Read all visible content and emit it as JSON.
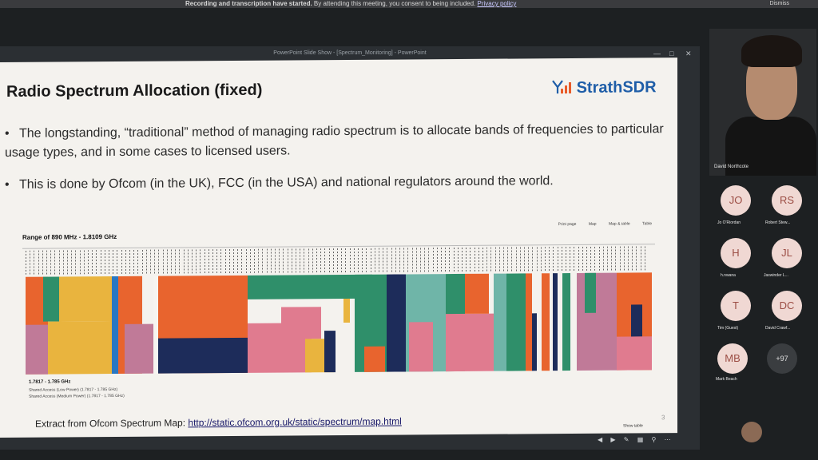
{
  "banner": {
    "message_bold": "Recording and transcription have started.",
    "message": " By attending this meeting, you consent to being included.",
    "privacy_link": "Privacy policy",
    "dismiss_label": "Dismiss"
  },
  "ppt": {
    "window_title": "PowerPoint Slide Show - [Spectrum_Monitoring] - PowerPoint",
    "slide": {
      "title": "Radio Spectrum Allocation (fixed)",
      "logo_text": "StrathSDR",
      "bullets": [
        "The longstanding, “traditional” method of managing radio spectrum is to allocate bands of frequencies to particular usage types, and in some cases to licensed users.",
        "This is done by Ofcom (in the UK), FCC (in the USA) and national regulators around the world."
      ],
      "map": {
        "range_label": "Range of 890 MHz - 1.8109 GHz",
        "links": [
          "Print page",
          "Map",
          "Map & table",
          "Table"
        ],
        "show_table": "Show table",
        "legend_title": "1.7817 - 1.785 GHz",
        "legend_lines": [
          "Shared Access (Low Power) (1.7817 - 1.785 GHz)",
          "Shared Access (Medium Power) (1.7817 - 1.785 GHz)"
        ]
      },
      "footnote_prefix": "Extract from Ofcom Spectrum Map: ",
      "footnote_link": "http://static.ofcom.org.uk/static/spectrum/map.html",
      "slide_number": "3"
    }
  },
  "participants": {
    "video_name": "David Northcote",
    "tiles": [
      {
        "initials": "JO",
        "name": "Jo O'Riordan"
      },
      {
        "initials": "RS",
        "name": "Robert Stew..."
      },
      {
        "initials": "H",
        "name": "h.nwana"
      },
      {
        "initials": "JL",
        "name": "Jaswinder L..."
      },
      {
        "initials": "T",
        "name": "Tim (Guest)"
      },
      {
        "initials": "DC",
        "name": "David Crawf..."
      },
      {
        "initials": "MB",
        "name": "Mark Beach"
      },
      {
        "initials": "+97",
        "name": ""
      }
    ]
  },
  "colors": {
    "orange": "#e8642e",
    "yellow": "#e9b43e",
    "green": "#2f8f6a",
    "pink": "#e07b8f",
    "mauve": "#c07a98",
    "navy": "#1d2c5a",
    "teal": "#6fb5a8",
    "blue": "#2a77c2"
  }
}
